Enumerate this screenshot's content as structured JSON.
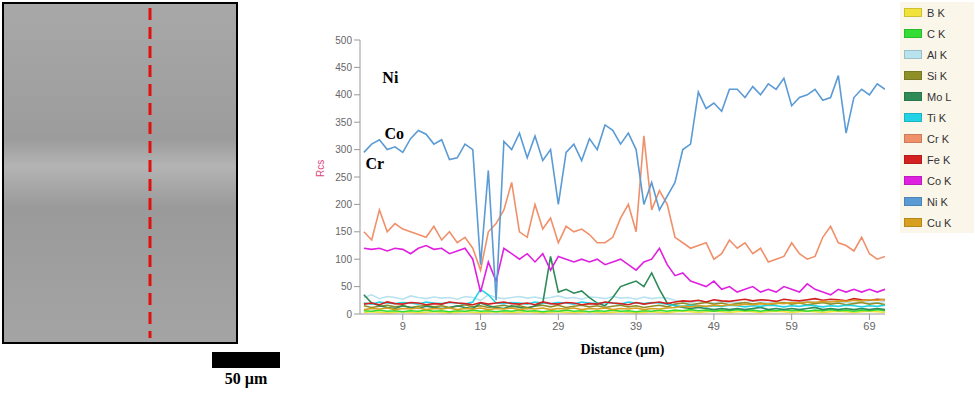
{
  "chart_data": {
    "type": "line",
    "x_label": "Distance (µm)",
    "y_label": "Rcs",
    "xlim": [
      3.5,
      71
    ],
    "xticks": [
      9,
      19,
      29,
      39,
      49,
      59,
      69
    ],
    "ylim": [
      0,
      500
    ],
    "yticks": [
      0,
      50,
      100,
      150,
      200,
      250,
      300,
      350,
      400,
      450,
      500
    ],
    "grid": false,
    "legend": "top-right",
    "x": [
      4,
      5,
      6,
      7,
      8,
      9,
      10,
      11,
      12,
      13,
      14,
      15,
      16,
      17,
      18,
      19,
      20,
      21,
      22,
      23,
      24,
      25,
      26,
      27,
      28,
      29,
      30,
      31,
      32,
      33,
      34,
      35,
      36,
      37,
      38,
      39,
      40,
      41,
      42,
      43,
      44,
      45,
      46,
      47,
      48,
      49,
      50,
      51,
      52,
      53,
      54,
      55,
      56,
      57,
      58,
      59,
      60,
      61,
      62,
      63,
      64,
      65,
      66,
      67,
      68,
      69,
      70,
      71
    ],
    "series": [
      {
        "name": "B K",
        "color": "#f2e23c",
        "values": [
          3,
          4,
          3,
          2,
          3,
          4,
          3,
          2,
          3,
          4,
          3,
          2,
          3,
          4,
          3,
          2,
          3,
          4,
          3,
          2,
          3,
          4,
          3,
          2,
          3,
          4,
          3,
          2,
          3,
          4,
          3,
          2,
          3,
          4,
          3,
          2,
          3,
          4,
          3,
          2,
          4,
          5,
          4,
          3,
          4,
          5,
          4,
          3,
          4,
          5,
          4,
          3,
          4,
          5,
          4,
          3,
          4,
          5,
          4,
          3,
          4,
          5,
          4,
          3,
          4,
          5,
          4,
          3
        ]
      },
      {
        "name": "C K",
        "color": "#33dd33",
        "values": [
          6,
          5,
          7,
          5,
          6,
          4,
          6,
          5,
          7,
          5,
          6,
          4,
          6,
          5,
          7,
          5,
          6,
          4,
          6,
          5,
          7,
          5,
          6,
          4,
          6,
          5,
          7,
          5,
          6,
          4,
          6,
          5,
          7,
          5,
          6,
          4,
          6,
          5,
          7,
          5,
          7,
          6,
          8,
          6,
          7,
          5,
          7,
          6,
          8,
          6,
          7,
          5,
          7,
          6,
          8,
          6,
          7,
          5,
          7,
          6,
          8,
          6,
          7,
          5,
          7,
          6,
          8,
          6
        ]
      },
      {
        "name": "Al K",
        "color": "#b8e2ee",
        "values": [
          30,
          35,
          28,
          32,
          30,
          27,
          33,
          30,
          28,
          31,
          29,
          30,
          27,
          32,
          30,
          25,
          35,
          30,
          28,
          30,
          32,
          29,
          31,
          28,
          30,
          33,
          29,
          30,
          27,
          31,
          30,
          28,
          32,
          29,
          30,
          27,
          31,
          28,
          30,
          29,
          25,
          22,
          20,
          24,
          22,
          20,
          23,
          21,
          22,
          20,
          24,
          22,
          21,
          23,
          20,
          22,
          21,
          24,
          22,
          20,
          23,
          21,
          22,
          20,
          24,
          22,
          21,
          23
        ]
      },
      {
        "name": "Si K",
        "color": "#8f8f2a",
        "values": [
          15,
          12,
          14,
          16,
          13,
          15,
          12,
          14,
          16,
          13,
          15,
          12,
          14,
          17,
          13,
          15,
          12,
          14,
          16,
          13,
          15,
          12,
          14,
          16,
          13,
          16,
          12,
          14,
          16,
          13,
          15,
          12,
          14,
          16,
          13,
          15,
          12,
          14,
          16,
          13,
          18,
          20,
          17,
          19,
          21,
          18,
          20,
          17,
          19,
          21,
          18,
          20,
          17,
          19,
          21,
          18,
          20,
          17,
          19,
          21,
          18,
          20,
          17,
          19,
          21,
          18,
          20,
          17
        ]
      },
      {
        "name": "Mo L",
        "color": "#2e8b57",
        "values": [
          35,
          20,
          15,
          12,
          10,
          15,
          12,
          10,
          14,
          12,
          10,
          12,
          15,
          12,
          10,
          20,
          15,
          12,
          10,
          15,
          12,
          10,
          15,
          20,
          105,
          40,
          45,
          38,
          42,
          30,
          20,
          15,
          30,
          50,
          55,
          60,
          50,
          75,
          45,
          20,
          15,
          12,
          10,
          12,
          10,
          8,
          10,
          8,
          10,
          8,
          10,
          12,
          8,
          10,
          8,
          10,
          8,
          10,
          12,
          8,
          10,
          8,
          10,
          8,
          10,
          8,
          10,
          8
        ]
      },
      {
        "name": "Ti K",
        "color": "#22d3e6",
        "values": [
          20,
          18,
          22,
          20,
          19,
          21,
          20,
          18,
          22,
          20,
          19,
          21,
          20,
          18,
          22,
          45,
          35,
          20,
          19,
          21,
          20,
          18,
          22,
          20,
          19,
          21,
          20,
          18,
          22,
          20,
          19,
          21,
          20,
          18,
          22,
          20,
          19,
          21,
          20,
          18,
          15,
          14,
          16,
          15,
          13,
          15,
          14,
          16,
          15,
          13,
          15,
          14,
          16,
          15,
          13,
          15,
          14,
          16,
          15,
          13,
          15,
          14,
          16,
          15,
          13,
          15,
          14,
          16
        ]
      },
      {
        "name": "Cr K",
        "color": "#f0906a",
        "values": [
          150,
          135,
          190,
          150,
          165,
          155,
          150,
          145,
          140,
          160,
          135,
          150,
          130,
          140,
          120,
          80,
          150,
          165,
          190,
          240,
          150,
          140,
          200,
          155,
          175,
          130,
          160,
          150,
          155,
          145,
          130,
          130,
          140,
          175,
          200,
          150,
          325,
          190,
          225,
          200,
          140,
          130,
          120,
          125,
          130,
          100,
          110,
          135,
          120,
          130,
          110,
          120,
          95,
          100,
          105,
          130,
          110,
          100,
          105,
          140,
          160,
          130,
          125,
          115,
          140,
          110,
          100,
          105
        ]
      },
      {
        "name": "Fe K",
        "color": "#d42020",
        "values": [
          18,
          20,
          17,
          22,
          19,
          18,
          21,
          20,
          17,
          19,
          18,
          22,
          20,
          19,
          17,
          21,
          18,
          20,
          22,
          19,
          18,
          20,
          17,
          22,
          19,
          18,
          21,
          20,
          17,
          19,
          18,
          22,
          20,
          19,
          17,
          21,
          18,
          20,
          22,
          19,
          22,
          24,
          23,
          25,
          22,
          26,
          24,
          23,
          25,
          27,
          24,
          26,
          25,
          23,
          27,
          25,
          24,
          26,
          28,
          25,
          27,
          26,
          24,
          28,
          26,
          25,
          27,
          26
        ]
      },
      {
        "name": "Co K",
        "color": "#e020e0",
        "values": [
          120,
          118,
          120,
          115,
          120,
          118,
          110,
          120,
          125,
          118,
          120,
          110,
          115,
          120,
          100,
          40,
          95,
          60,
          120,
          110,
          100,
          110,
          95,
          110,
          80,
          105,
          100,
          95,
          100,
          95,
          100,
          90,
          95,
          100,
          90,
          80,
          95,
          100,
          120,
          90,
          70,
          75,
          60,
          55,
          50,
          60,
          45,
          50,
          40,
          45,
          50,
          40,
          45,
          40,
          50,
          45,
          40,
          55,
          45,
          40,
          35,
          45,
          40,
          45,
          40,
          45,
          40,
          45
        ]
      },
      {
        "name": "Ni K",
        "color": "#5b9bd5",
        "values": [
          295,
          310,
          318,
          300,
          305,
          295,
          320,
          335,
          328,
          310,
          318,
          282,
          285,
          310,
          300,
          90,
          262,
          25,
          315,
          300,
          330,
          285,
          325,
          280,
          300,
          200,
          295,
          310,
          280,
          320,
          300,
          345,
          335,
          310,
          330,
          300,
          200,
          240,
          190,
          215,
          240,
          300,
          310,
          405,
          375,
          385,
          370,
          410,
          410,
          395,
          415,
          400,
          420,
          410,
          430,
          380,
          395,
          400,
          410,
          390,
          395,
          435,
          330,
          395,
          410,
          400,
          420,
          410
        ]
      },
      {
        "name": "Cu K",
        "color": "#d8a020",
        "values": [
          8,
          10,
          9,
          11,
          8,
          10,
          9,
          11,
          8,
          10,
          9,
          11,
          8,
          10,
          9,
          11,
          8,
          10,
          9,
          11,
          8,
          10,
          9,
          11,
          8,
          10,
          9,
          11,
          8,
          10,
          9,
          11,
          8,
          10,
          9,
          11,
          8,
          10,
          9,
          11,
          12,
          14,
          13,
          15,
          14,
          16,
          15,
          17,
          16,
          18,
          17,
          19,
          18,
          20,
          19,
          21,
          20,
          22,
          21,
          23,
          22,
          24,
          23,
          25,
          24,
          26,
          25,
          27
        ]
      }
    ],
    "annotations": [
      {
        "text": "Ni",
        "x": 7.4,
        "y": 431
      },
      {
        "text": "Cr",
        "x": 5.4,
        "y": 275
      },
      {
        "text": "Co",
        "x": 7.9,
        "y": 330
      }
    ]
  },
  "micrograph": {
    "scale_bar": "50 µm"
  }
}
